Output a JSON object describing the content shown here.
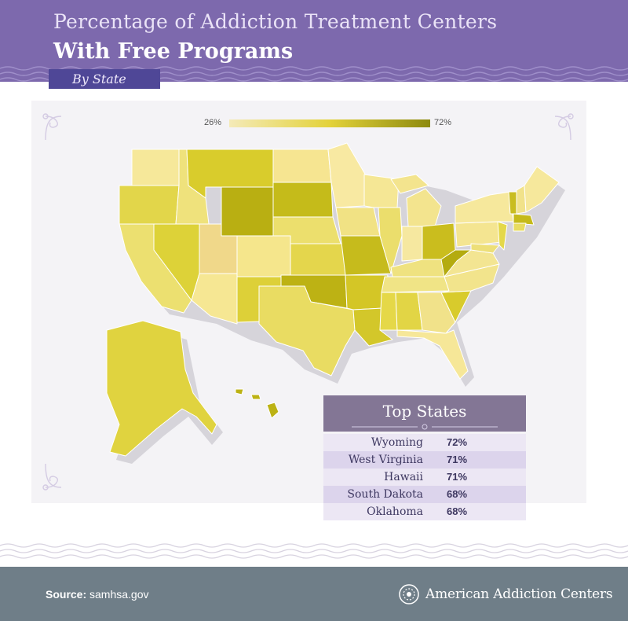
{
  "header": {
    "title_line1": "Percentage of Addiction Treatment Centers",
    "title_line2": "With Free Programs",
    "subtitle": "By State",
    "bg_color": "#7d69ad"
  },
  "legend": {
    "min_label": "26%",
    "max_label": "72%",
    "min_color": "#f4eab8",
    "max_color": "#8d8a0e"
  },
  "top_states": {
    "title": "Top States",
    "rows": [
      {
        "state": "Wyoming",
        "pct": "72%"
      },
      {
        "state": "West Virginia",
        "pct": "71%"
      },
      {
        "state": "Hawaii",
        "pct": "71%"
      },
      {
        "state": "South Dakota",
        "pct": "68%"
      },
      {
        "state": "Oklahoma",
        "pct": "68%"
      }
    ]
  },
  "footer": {
    "source_label": "Source:",
    "source_value": "samhsa.gov",
    "brand": "American Addiction Centers",
    "bg_color": "#6f7e88"
  }
}
